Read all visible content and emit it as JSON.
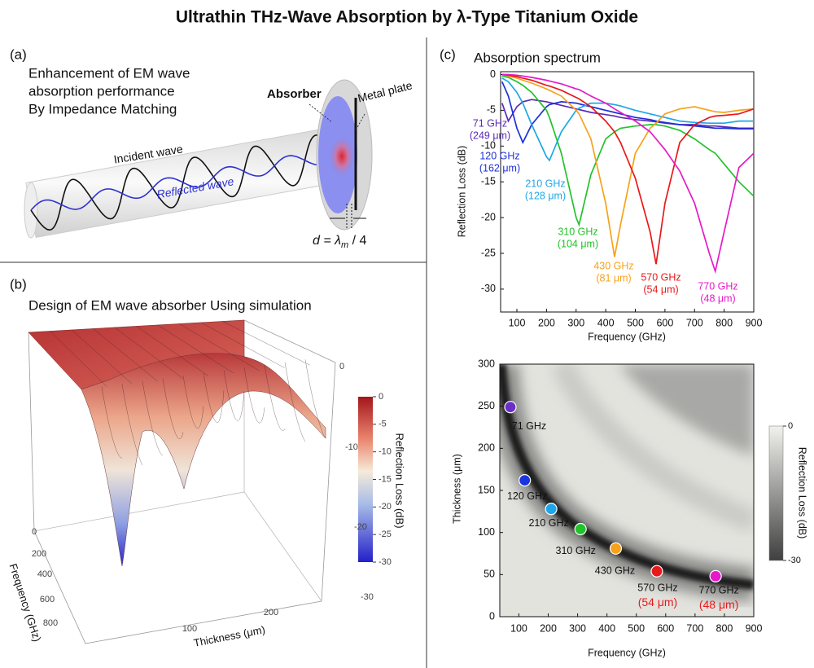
{
  "title": "Ultrathin THz-Wave Absorption by λ-Type Titanium Oxide",
  "panel_a": {
    "label": "(a)",
    "heading_lines": [
      "Enhancement of EM wave",
      "absorption performance",
      "By Impedance Matching"
    ],
    "absorber": "Absorber",
    "metal_plate": "Metal plate",
    "incident": "Incident wave",
    "reflected": "Reflected wave",
    "formula_lhs": "d = λ",
    "formula_sub": "m",
    "formula_rhs": " / 4"
  },
  "panel_b": {
    "label": "(b)",
    "heading": "Design of EM wave absorber Using simulation",
    "frequency_label": "Frequency (GHz)",
    "frequency_ticks": [
      "0",
      "200",
      "400",
      "600",
      "800"
    ],
    "thickness_label": "Thickness (μm)",
    "thickness_ticks": [
      "100",
      "200"
    ],
    "z_ticks": [
      "0",
      "-10",
      "-20",
      "-30"
    ],
    "colorbar_label": "Reflection Loss (dB)",
    "colorbar_ticks": [
      "0",
      "-5",
      "-10",
      "-15",
      "-20",
      "-25",
      "-30"
    ]
  },
  "panel_c_label": "(c)",
  "chart_data": [
    {
      "type": "line",
      "title": "Absorption spectrum",
      "x_label": "Frequency (GHz)",
      "y_label": "Reflection Loss (dB)",
      "xlim": [
        45,
        900
      ],
      "ylim": [
        -33.2,
        0.4
      ],
      "xticks": [
        100,
        200,
        300,
        400,
        500,
        600,
        700,
        800,
        900
      ],
      "yticks": [
        0,
        -5,
        -10,
        -15,
        -20,
        -25,
        -30
      ],
      "x": [
        50,
        71,
        100,
        120,
        150,
        200,
        210,
        250,
        300,
        310,
        350,
        400,
        430,
        450,
        500,
        550,
        570,
        600,
        650,
        700,
        750,
        770,
        800,
        850,
        900
      ],
      "series": [
        {
          "name": "71 GHz",
          "thickness": "(249 μm)",
          "color": "#5a2ab5",
          "values": [
            -4,
            -6.5,
            -4.5,
            -3.8,
            -3.5,
            -3.8,
            -3.9,
            -4.3,
            -4.8,
            -4.9,
            -5.3,
            -5.6,
            -5.8,
            -6,
            -6.3,
            -6.5,
            -6.6,
            -6.8,
            -7,
            -7,
            -7.2,
            -7.2,
            -7.3,
            -7.5,
            -7.5
          ]
        },
        {
          "name": "120 GHz",
          "thickness": "(162 μm)",
          "color": "#1c30d8",
          "values": [
            -1,
            -3,
            -7.5,
            -9.5,
            -7,
            -4.5,
            -4.2,
            -3.8,
            -4,
            -4.1,
            -4.5,
            -5,
            -5.3,
            -5.5,
            -6,
            -6.3,
            -6.5,
            -6.7,
            -7,
            -7.2,
            -7.4,
            -7.5,
            -7.5,
            -7.6,
            -7.6
          ]
        },
        {
          "name": "210 GHz",
          "thickness": "(128 μm)",
          "color": "#1ea7e8",
          "values": [
            -0.5,
            -1,
            -2.5,
            -4,
            -7,
            -11.5,
            -12,
            -8,
            -5,
            -4.7,
            -4,
            -4,
            -4.2,
            -4.4,
            -5,
            -5.5,
            -5.7,
            -6,
            -6.5,
            -6.7,
            -6.8,
            -6.8,
            -6.8,
            -6.5,
            -6.5
          ]
        },
        {
          "name": "310 GHz",
          "thickness": "(104 μm)",
          "color": "#22c22a",
          "values": [
            -0.2,
            -0.4,
            -1,
            -1.5,
            -2.5,
            -5,
            -6,
            -11,
            -20,
            -21,
            -14,
            -9,
            -8,
            -7.5,
            -7.2,
            -7,
            -7,
            -7.2,
            -7.8,
            -9,
            -10.5,
            -11,
            -12.5,
            -15,
            -17
          ]
        },
        {
          "name": "430 GHz",
          "thickness": "(81 μm)",
          "color": "#f7a21b",
          "values": [
            0,
            -0.2,
            -0.5,
            -0.8,
            -1.2,
            -2,
            -2.2,
            -3,
            -5,
            -5.5,
            -9,
            -18,
            -25.5,
            -21,
            -11,
            -7.5,
            -6.8,
            -5.5,
            -4.8,
            -4.5,
            -5,
            -5.2,
            -5.3,
            -5,
            -4.8
          ]
        },
        {
          "name": "570 GHz",
          "thickness": "(54 μm)",
          "color": "#e8191a",
          "values": [
            0,
            -0.1,
            -0.3,
            -0.5,
            -0.8,
            -1.5,
            -1.6,
            -2.2,
            -3.2,
            -3.4,
            -4.5,
            -6.5,
            -8,
            -9.5,
            -14.5,
            -22,
            -26.5,
            -18,
            -9.5,
            -7,
            -6,
            -5.8,
            -5.7,
            -5.5,
            -4.8
          ]
        },
        {
          "name": "770 GHz",
          "thickness": "(48 μm)",
          "color": "#e619c8",
          "values": [
            0,
            0,
            -0.1,
            -0.2,
            -0.4,
            -0.8,
            -0.9,
            -1.3,
            -2,
            -2.1,
            -3,
            -4,
            -4.8,
            -5.3,
            -6.5,
            -8,
            -9,
            -10.5,
            -13.5,
            -18,
            -25,
            -27.5,
            -22,
            -13,
            -11
          ]
        }
      ]
    },
    {
      "type": "scatter",
      "x_label": "Frequency (GHz)",
      "y_label": "Thickness (μm)",
      "xlim": [
        35,
        900
      ],
      "ylim": [
        0,
        300
      ],
      "xticks": [
        100,
        200,
        300,
        400,
        500,
        600,
        700,
        800,
        900
      ],
      "yticks": [
        0,
        50,
        100,
        150,
        200,
        250,
        300
      ],
      "x": [
        71,
        120,
        210,
        310,
        430,
        570,
        770
      ],
      "values": [
        249,
        162,
        128,
        104,
        81,
        54,
        48
      ],
      "colors": [
        "#6a2fc8",
        "#1a35e0",
        "#1ea7e8",
        "#22c22a",
        "#f7a21b",
        "#e8191a",
        "#e619c8"
      ],
      "labels": [
        "71 GHz",
        "120 GHz",
        "210 GHz",
        "310 GHz",
        "430 GHz",
        "570 GHz",
        "770 GHz"
      ],
      "sublabels": [
        null,
        null,
        null,
        null,
        null,
        "(54 μm)",
        "(48 μm)"
      ],
      "sublabel_color": "#e8191a",
      "colorbar_label": "Reflection Loss (dB)",
      "colorbar_lim": [
        -30,
        0
      ],
      "colorbar_ticks": [
        0,
        -30
      ]
    }
  ]
}
